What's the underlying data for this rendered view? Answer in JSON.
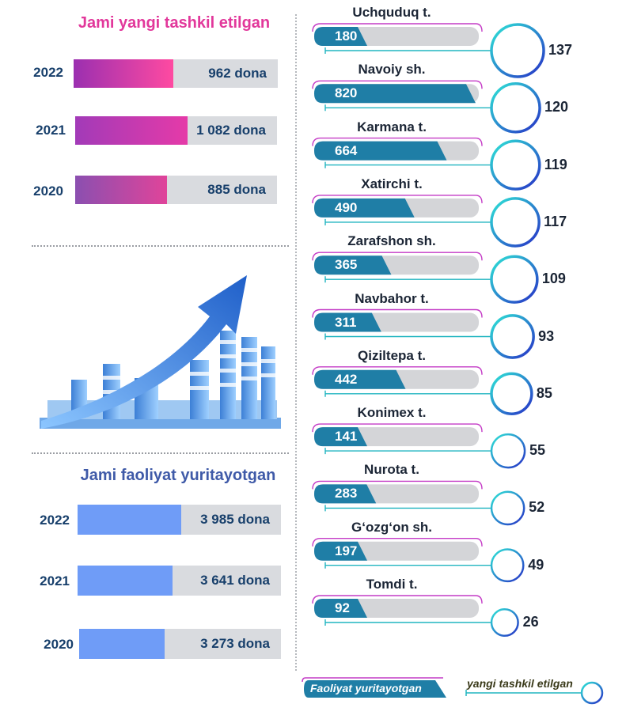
{
  "top_section": {
    "title": "Jami yangi tashkil etilgan",
    "rows": [
      {
        "year": "2022",
        "value_label": "962 dona",
        "value": 962
      },
      {
        "year": "2021",
        "value_label": "1 082 dona",
        "value": 1082
      },
      {
        "year": "2020",
        "value_label": "885 dona",
        "value": 885
      }
    ]
  },
  "bottom_section": {
    "title": "Jami faoliyat yuritayotgan",
    "rows": [
      {
        "year": "2022",
        "value_label": "3 985 dona",
        "value": 3985
      },
      {
        "year": "2021",
        "value_label": "3 641 dona",
        "value": 3641
      },
      {
        "year": "2020",
        "value_label": "3 273 dona",
        "value": 3273
      }
    ]
  },
  "colors": {
    "accent_pink": "#e2389b",
    "accent_blue": "#3f5aa8",
    "bar_operating": "#1f7ea6",
    "bar_new_light": "#6f9cf7",
    "circle_gradient_start": "#2ee6d6",
    "circle_gradient_end": "#2730c7"
  },
  "image_icons": [
    "growth-arrow-icon",
    "factory-icon"
  ],
  "chart_data": {
    "type": "bar",
    "categories": [
      "Uchquduq t.",
      "Navoiy sh.",
      "Karmana t.",
      "Xatirchi t.",
      "Zarafshon sh.",
      "Navbahor t.",
      "Qiziltepa t.",
      "Konimex t.",
      "Nurota t.",
      "G‘ozg‘on sh.",
      "Tomdi t."
    ],
    "series": [
      {
        "name": "Faoliyat yuritayotgan",
        "values": [
          180,
          820,
          664,
          490,
          365,
          311,
          442,
          141,
          283,
          197,
          92
        ]
      },
      {
        "name": "yangi tashkil etilgan",
        "values": [
          137,
          120,
          119,
          117,
          109,
          93,
          85,
          55,
          52,
          49,
          26
        ]
      }
    ],
    "legend": {
      "position": "bottom",
      "items": [
        "Faoliyat yuritayotgan",
        "yangi tashkil etilgan"
      ]
    },
    "grid": false
  }
}
